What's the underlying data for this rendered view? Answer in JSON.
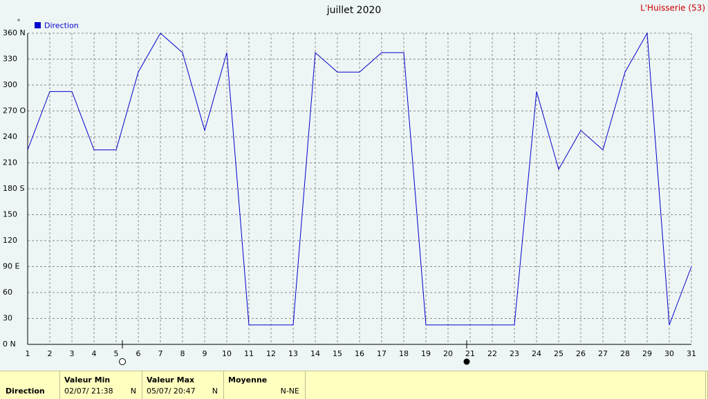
{
  "chart_data": {
    "type": "line",
    "title": "juillet 2020",
    "subtitle": "L'Huisserie (53)",
    "y_unit": "°",
    "x": [
      1,
      2,
      3,
      4,
      5,
      6,
      7,
      8,
      9,
      10,
      11,
      12,
      13,
      14,
      15,
      16,
      17,
      18,
      19,
      20,
      21,
      22,
      23,
      24,
      25,
      26,
      27,
      28,
      29,
      30,
      31
    ],
    "series": [
      {
        "name": "Direction",
        "color": "#0000cc",
        "values": [
          225,
          292.5,
          292.5,
          225,
          225,
          315,
          360,
          337.5,
          247.5,
          337.5,
          22.5,
          22.5,
          22.5,
          337.5,
          315,
          315,
          337.5,
          337.5,
          22.5,
          22.5,
          22.5,
          22.5,
          22.5,
          292.5,
          202.5,
          247.5,
          225,
          315,
          360,
          22.5,
          90
        ]
      }
    ],
    "xlim": [
      1,
      31
    ],
    "xticks": [
      1,
      2,
      3,
      4,
      5,
      6,
      7,
      8,
      9,
      10,
      11,
      12,
      13,
      14,
      15,
      16,
      17,
      18,
      19,
      20,
      21,
      22,
      23,
      24,
      25,
      26,
      27,
      28,
      29,
      30,
      31
    ],
    "ylim": [
      0,
      360
    ],
    "yticks": [
      {
        "value": 0,
        "label": "0   N"
      },
      30,
      60,
      {
        "value": 90,
        "label": "90  E"
      },
      120,
      150,
      {
        "value": 180,
        "label": "180 S"
      },
      210,
      240,
      {
        "value": 270,
        "label": "270 O"
      },
      300,
      330,
      {
        "value": 360,
        "label": "360 N"
      }
    ],
    "grid": true,
    "legend": "top-left"
  },
  "summary": {
    "row_label": "Direction",
    "min_header": "Valeur Min",
    "min_time": "02/07/  21:38",
    "min_dir": "N",
    "max_header": "Valeur Max",
    "max_time": "05/07/  20:47",
    "max_dir": "N",
    "mean_header": "Moyenne",
    "mean_dir": "N-NE"
  }
}
